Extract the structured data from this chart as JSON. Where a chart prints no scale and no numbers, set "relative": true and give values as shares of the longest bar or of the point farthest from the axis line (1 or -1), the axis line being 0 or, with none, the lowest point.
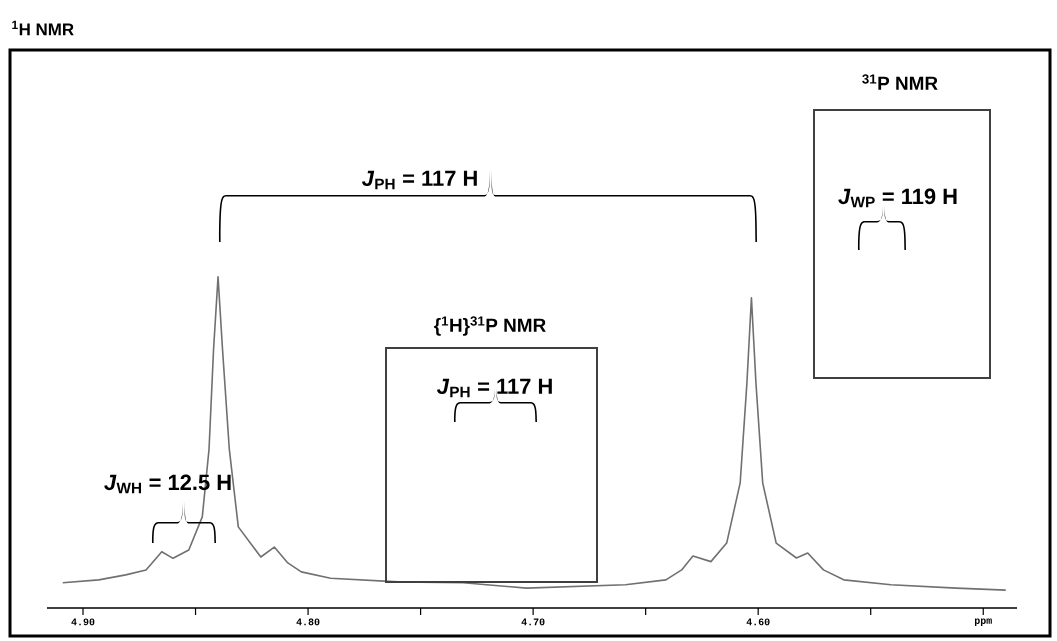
{
  "chart_data": {
    "type": "line",
    "title": "$^{1}$H NMR",
    "relative": true,
    "x": [
      4.909,
      4.893,
      4.881,
      4.872,
      4.865,
      4.86,
      4.853,
      4.847,
      4.844,
      4.842,
      4.84,
      4.838,
      4.835,
      4.831,
      4.821,
      4.815,
      4.809,
      4.803,
      4.79,
      4.76,
      4.731,
      4.703,
      4.659,
      4.641,
      4.634,
      4.629,
      4.621,
      4.614,
      4.608,
      4.605,
      4.603,
      4.601,
      4.598,
      4.592,
      4.583,
      4.578,
      4.571,
      4.562,
      4.541,
      4.512,
      4.49
    ],
    "series": [
      {
        "color": "#707070",
        "values": [
          0.076,
          0.085,
          0.1,
          0.115,
          0.17,
          0.15,
          0.175,
          0.275,
          0.48,
          0.78,
          1.0,
          0.78,
          0.48,
          0.245,
          0.154,
          0.184,
          0.136,
          0.109,
          0.09,
          0.079,
          0.076,
          0.06,
          0.07,
          0.085,
          0.115,
          0.157,
          0.14,
          0.196,
          0.378,
          0.68,
          0.937,
          0.68,
          0.378,
          0.196,
          0.151,
          0.166,
          0.115,
          0.085,
          0.07,
          0.06,
          0.054
        ]
      }
    ],
    "xlim": [
      4.916,
      4.485
    ],
    "xticks": [
      {
        "value": 4.9,
        "label": "4.90"
      },
      {
        "value": 4.85,
        "label": null
      },
      {
        "value": 4.8,
        "label": "4.80"
      },
      {
        "value": 4.75,
        "label": null
      },
      {
        "value": 4.7,
        "label": "4.70"
      },
      {
        "value": 4.65,
        "label": null
      },
      {
        "value": 4.6,
        "label": "4.60"
      },
      {
        "value": 4.55,
        "label": null
      },
      {
        "value": 4.5,
        "label": "ppm"
      }
    ],
    "tick_labels": "x",
    "annotations": [
      "*J*$_{PH}$ = 117 H",
      "$^{31}$P NMR",
      "*J*$_{WP}$ = 119 H",
      "{$^{1}$H}$^{31}$P NMR",
      "*J*$_{PH}$ = 117 H",
      "*J*$_{WH}$ = 12.5 H"
    ]
  }
}
